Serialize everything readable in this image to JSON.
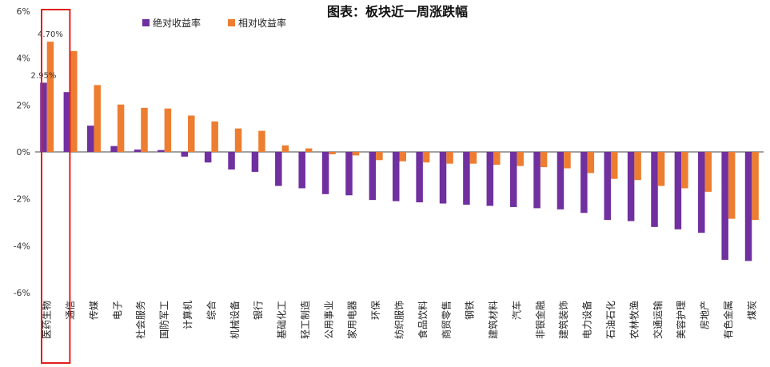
{
  "chart_data": {
    "type": "bar",
    "title": "图表：板块近一周涨跌幅",
    "xlabel": "",
    "ylabel": "",
    "ylim": [
      -6,
      6
    ],
    "yticks": [
      6,
      4,
      2,
      0,
      -2,
      -4,
      -6
    ],
    "ytick_labels": [
      "6%",
      "4%",
      "2%",
      "0%",
      "-2%",
      "-4%",
      "-6%"
    ],
    "grid": false,
    "legend_position": "top-left",
    "categories": [
      "医药生物",
      "通信",
      "传媒",
      "电子",
      "社会服务",
      "国防军工",
      "计算机",
      "综合",
      "机械设备",
      "银行",
      "基础化工",
      "轻工制造",
      "公用事业",
      "家用电器",
      "环保",
      "纺织服饰",
      "食品饮料",
      "商贸零售",
      "钢铁",
      "建筑材料",
      "汽车",
      "非银金融",
      "建筑装饰",
      "电力设备",
      "石油石化",
      "农林牧渔",
      "交通运输",
      "美容护理",
      "房地产",
      "有色金属",
      "煤炭"
    ],
    "series": [
      {
        "name": "绝对收益率",
        "color": "#7030a0",
        "values": [
          2.95,
          2.55,
          1.12,
          0.25,
          0.1,
          0.08,
          -0.2,
          -0.45,
          -0.75,
          -0.85,
          -1.45,
          -1.55,
          -1.8,
          -1.85,
          -2.05,
          -2.1,
          -2.15,
          -2.2,
          -2.25,
          -2.3,
          -2.35,
          -2.4,
          -2.45,
          -2.6,
          -2.9,
          -2.95,
          -3.2,
          -3.3,
          -3.45,
          -4.6,
          -4.65
        ]
      },
      {
        "name": "相对收益率",
        "color": "#ed7d31",
        "values": [
          4.7,
          4.3,
          2.85,
          2.02,
          1.88,
          1.85,
          1.55,
          1.3,
          1.0,
          0.9,
          0.28,
          0.15,
          -0.1,
          -0.15,
          -0.35,
          -0.4,
          -0.45,
          -0.5,
          -0.5,
          -0.55,
          -0.6,
          -0.65,
          -0.7,
          -0.9,
          -1.15,
          -1.2,
          -1.45,
          -1.55,
          -1.7,
          -2.85,
          -2.9
        ]
      }
    ],
    "data_labels": [
      {
        "series": 1,
        "index": 0,
        "text": "4.70%"
      },
      {
        "series": 0,
        "index": 0,
        "text": "2.95%"
      }
    ],
    "highlight": {
      "index": 0,
      "color": "#e0201e"
    }
  }
}
